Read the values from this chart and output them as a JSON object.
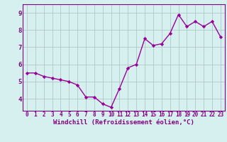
{
  "x": [
    0,
    1,
    2,
    3,
    4,
    5,
    6,
    7,
    8,
    9,
    10,
    11,
    12,
    13,
    14,
    15,
    16,
    17,
    18,
    19,
    20,
    21,
    22,
    23
  ],
  "y": [
    5.5,
    5.5,
    5.3,
    5.2,
    5.1,
    5.0,
    4.8,
    4.1,
    4.1,
    3.7,
    3.5,
    4.6,
    5.8,
    6.0,
    7.5,
    7.1,
    7.2,
    7.8,
    8.9,
    8.2,
    8.5,
    8.2,
    8.5,
    7.6
  ],
  "line_color": "#990099",
  "marker": "D",
  "marker_size": 2.2,
  "line_width": 1.0,
  "bg_color": "#d6f0f0",
  "grid_color": "#b0c8c8",
  "xlabel": "Windchill (Refroidissement éolien,°C)",
  "xlabel_color": "#800080",
  "xlabel_fontsize": 6.5,
  "ylabel_ticks": [
    4,
    5,
    6,
    7,
    8,
    9
  ],
  "xtick_labels": [
    "0",
    "1",
    "2",
    "3",
    "4",
    "5",
    "6",
    "7",
    "8",
    "9",
    "10",
    "11",
    "12",
    "13",
    "14",
    "15",
    "16",
    "17",
    "18",
    "19",
    "20",
    "21",
    "22",
    "23"
  ],
  "ylim": [
    3.3,
    9.5
  ],
  "xlim": [
    -0.5,
    23.5
  ],
  "tick_fontsize": 6.5,
  "tick_color": "#800080",
  "spine_color": "#800080"
}
